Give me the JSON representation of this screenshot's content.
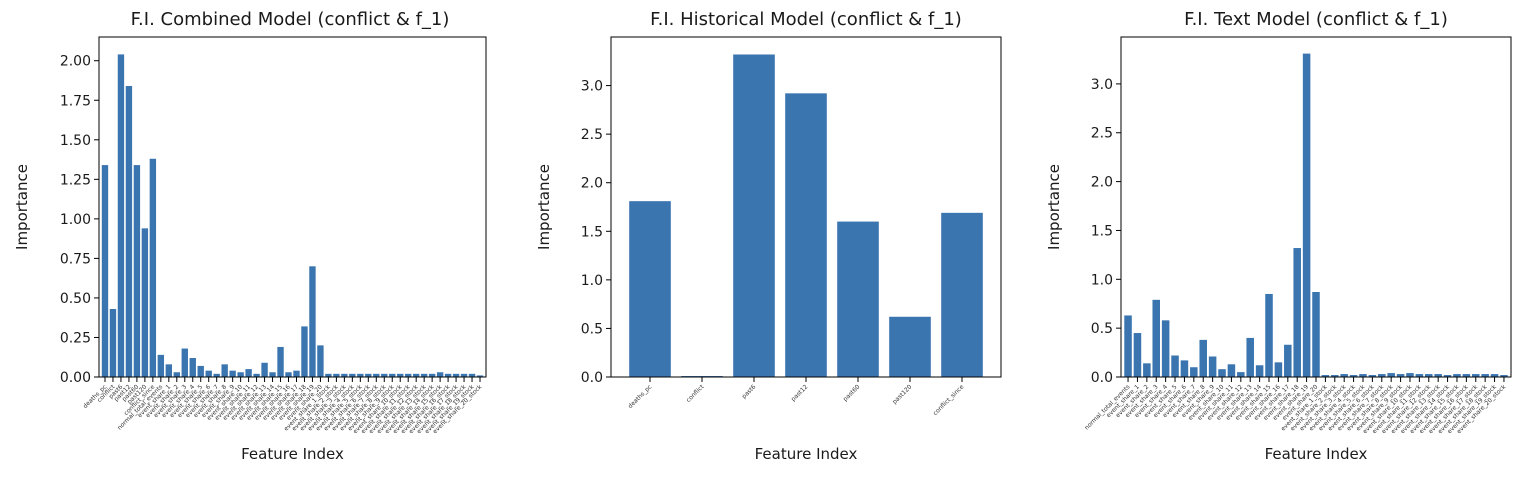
{
  "chart_data": [
    {
      "type": "bar",
      "title": "F.I. Combined Model (conflict & f_1)",
      "xlabel": "Feature Index",
      "ylabel": "Importance",
      "ylim": [
        0,
        2.15
      ],
      "yticks": [
        "0.00",
        "0.25",
        "0.50",
        "0.75",
        "1.00",
        "1.25",
        "1.50",
        "1.75",
        "2.00"
      ],
      "bar_color": "#3a75b0",
      "grid": false,
      "categories": [
        "deaths_pc",
        "conflict",
        "past6",
        "past12",
        "past60",
        "past120",
        "conflict_since",
        "normal_total_events",
        "event_share_1",
        "event_share_2",
        "event_share_3",
        "event_share_4",
        "event_share_5",
        "event_share_6",
        "event_share_7",
        "event_share_8",
        "event_share_9",
        "event_share_10",
        "event_share_11",
        "event_share_12",
        "event_share_13",
        "event_share_14",
        "event_share_15",
        "event_share_16",
        "event_share_17",
        "event_share_18",
        "event_share_19",
        "event_share_20",
        "event_share_1_stock",
        "event_share_2_stock",
        "event_share_3_stock",
        "event_share_4_stock",
        "event_share_5_stock",
        "event_share_6_stock",
        "event_share_7_stock",
        "event_share_8_stock",
        "event_share_9_stock",
        "event_share_10_stock",
        "event_share_11_stock",
        "event_share_12_stock",
        "event_share_13_stock",
        "event_share_14_stock",
        "event_share_15_stock",
        "event_share_16_stock",
        "event_share_17_stock",
        "event_share_18_stock",
        "event_share_19_stock",
        "event_share_20_stock"
      ],
      "values": [
        1.34,
        0.43,
        2.04,
        1.84,
        1.34,
        0.94,
        1.38,
        0.14,
        0.08,
        0.03,
        0.18,
        0.12,
        0.07,
        0.04,
        0.02,
        0.08,
        0.04,
        0.03,
        0.05,
        0.02,
        0.09,
        0.03,
        0.19,
        0.03,
        0.04,
        0.32,
        0.7,
        0.2,
        0.02,
        0.02,
        0.02,
        0.02,
        0.02,
        0.02,
        0.02,
        0.02,
        0.02,
        0.02,
        0.02,
        0.02,
        0.02,
        0.02,
        0.03,
        0.02,
        0.02,
        0.02,
        0.02,
        0.01
      ]
    },
    {
      "type": "bar",
      "title": "F.I. Historical Model (conflict & f_1)",
      "xlabel": "Feature Index",
      "ylabel": "Importance",
      "ylim": [
        0,
        3.5
      ],
      "yticks": [
        "0.0",
        "0.5",
        "1.0",
        "1.5",
        "2.0",
        "2.5",
        "3.0"
      ],
      "bar_color": "#3a75b0",
      "grid": false,
      "categories": [
        "deaths_pc",
        "conflict",
        "past6",
        "past12",
        "past60",
        "past120",
        "conflict_since"
      ],
      "values": [
        1.81,
        0.01,
        3.32,
        2.92,
        1.6,
        0.62,
        1.69
      ]
    },
    {
      "type": "bar",
      "title": "F.I. Text Model (conflict & f_1)",
      "xlabel": "Feature Index",
      "ylabel": "Importance",
      "ylim": [
        0,
        3.48
      ],
      "yticks": [
        "0.0",
        "0.5",
        "1.0",
        "1.5",
        "2.0",
        "2.5",
        "3.0"
      ],
      "bar_color": "#3a75b0",
      "grid": false,
      "categories": [
        "normal_total_events",
        "event_share_1",
        "event_share_2",
        "event_share_3",
        "event_share_4",
        "event_share_5",
        "event_share_6",
        "event_share_7",
        "event_share_8",
        "event_share_9",
        "event_share_10",
        "event_share_11",
        "event_share_12",
        "event_share_13",
        "event_share_14",
        "event_share_15",
        "event_share_16",
        "event_share_17",
        "event_share_18",
        "event_share_19",
        "event_share_20",
        "event_share_1_stock",
        "event_share_2_stock",
        "event_share_3_stock",
        "event_share_4_stock",
        "event_share_5_stock",
        "event_share_6_stock",
        "event_share_7_stock",
        "event_share_8_stock",
        "event_share_9_stock",
        "event_share_10_stock",
        "event_share_11_stock",
        "event_share_12_stock",
        "event_share_13_stock",
        "event_share_14_stock",
        "event_share_15_stock",
        "event_share_16_stock",
        "event_share_17_stock",
        "event_share_18_stock",
        "event_share_19_stock",
        "event_share_20_stock"
      ],
      "values": [
        0.63,
        0.45,
        0.14,
        0.79,
        0.58,
        0.22,
        0.17,
        0.1,
        0.38,
        0.21,
        0.08,
        0.13,
        0.05,
        0.4,
        0.12,
        0.85,
        0.15,
        0.33,
        1.32,
        3.31,
        0.87,
        0.02,
        0.02,
        0.03,
        0.02,
        0.03,
        0.02,
        0.03,
        0.04,
        0.03,
        0.04,
        0.03,
        0.03,
        0.03,
        0.02,
        0.03,
        0.03,
        0.03,
        0.03,
        0.03,
        0.02
      ]
    }
  ]
}
